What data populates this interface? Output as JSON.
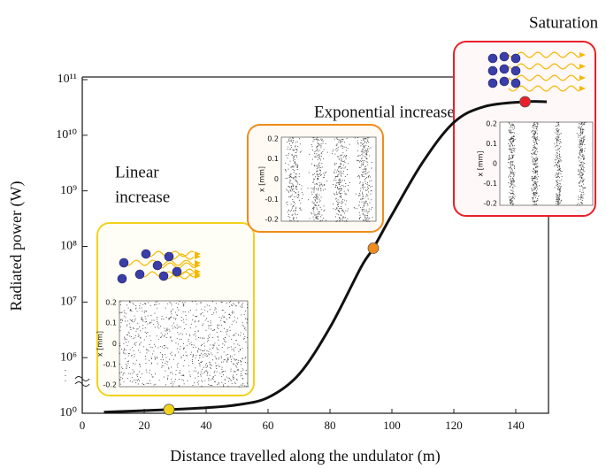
{
  "chart_data": {
    "type": "line",
    "y_scale": "log",
    "xlabel": "Distance travelled along the undulator (m)",
    "ylabel": "Radiated power (W)",
    "xlim": [
      0,
      150
    ],
    "xticks": [
      0,
      20,
      40,
      60,
      80,
      100,
      120,
      140
    ],
    "ylim": [
      1,
      100000000000
    ],
    "yticks": [
      {
        "value": 1,
        "label": "10⁰"
      },
      {
        "value": 1000000,
        "label": "10⁶"
      },
      {
        "value": 10000000,
        "label": "10⁷"
      },
      {
        "value": 100000000,
        "label": "10⁸"
      },
      {
        "value": 1000000000,
        "label": "10⁹"
      },
      {
        "value": 10000000000,
        "label": "10¹⁰"
      },
      {
        "value": 100000000000,
        "label": "10¹¹"
      }
    ],
    "series": [
      {
        "color": "#111111",
        "x": [
          7,
          28,
          40,
          50,
          60,
          70,
          80,
          90,
          94,
          100,
          110,
          120,
          130,
          143,
          150
        ],
        "values": [
          1.3,
          2.5,
          4,
          8,
          50,
          16000,
          3500000,
          42000000,
          93000000,
          370000000,
          3300000000,
          17000000000,
          33000000000,
          40000000000,
          40000000000
        ]
      }
    ],
    "markers": [
      {
        "x": 28,
        "value": 2.5,
        "color": "#f2d21b"
      },
      {
        "x": 94,
        "value": 93000000,
        "color": "#f08c1c"
      },
      {
        "x": 143,
        "value": 40000000000,
        "color": "#e8202a"
      }
    ],
    "annotations": [
      {
        "lines": [
          "Linear",
          "increase"
        ]
      },
      {
        "lines": [
          "Exponential increase"
        ]
      },
      {
        "lines": [
          "Saturation"
        ]
      }
    ],
    "insets": [
      {
        "ylabel": "x [mm]",
        "yticks": [
          0.2,
          0.1,
          0,
          -0.1,
          -0.2
        ]
      },
      {
        "ylabel": "x [mm]",
        "yticks": [
          0.2,
          0.1,
          0,
          -0.1,
          -0.2
        ]
      },
      {
        "ylabel": "x [mm]",
        "yticks": [
          0.2,
          0.1,
          0,
          -0.1,
          -0.2
        ]
      }
    ]
  }
}
